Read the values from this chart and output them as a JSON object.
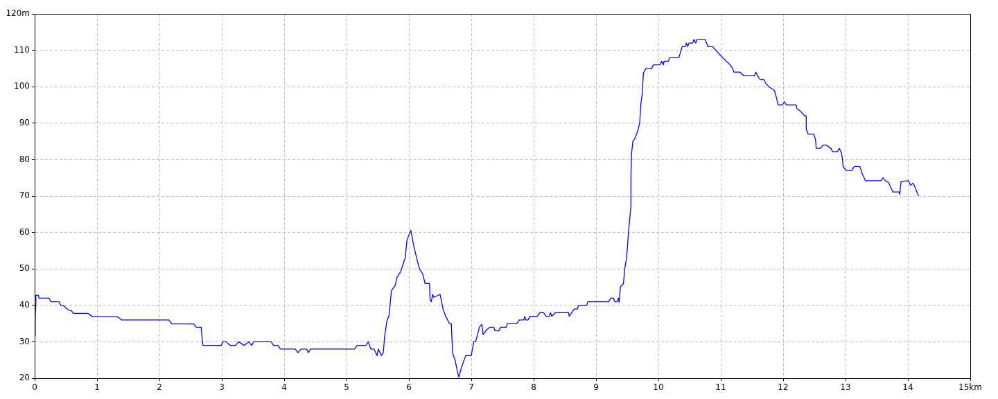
{
  "chart_data": {
    "type": "line",
    "xlim": [
      0,
      15
    ],
    "ylim": [
      20,
      120
    ],
    "xticks": [
      0,
      1,
      2,
      3,
      4,
      5,
      6,
      7,
      8,
      9,
      10,
      11,
      12,
      13,
      14,
      {
        "value": 15,
        "label": "15km"
      }
    ],
    "yticks": [
      20,
      30,
      40,
      50,
      60,
      70,
      80,
      90,
      100,
      110,
      {
        "value": 120,
        "label": "120m"
      }
    ],
    "grid": true,
    "marker": "none",
    "line_style": "solid",
    "legend": false,
    "series": [
      {
        "color": "#0000ff",
        "x": [
          0,
          0.01,
          0.02,
          0.02,
          0.06,
          0.07,
          0.23,
          0.26,
          0.39,
          0.42,
          0.46,
          0.53,
          0.59,
          0.62,
          0.85,
          0.93,
          1.33,
          1.39,
          2.15,
          2.2,
          2.55,
          2.59,
          2.67,
          2.69,
          2.7,
          2.99,
          3.02,
          3.07,
          3.14,
          3.22,
          3.27,
          3.36,
          3.43,
          3.48,
          3.51,
          3.79,
          3.83,
          3.9,
          3.94,
          4.18,
          4.22,
          4.27,
          4.36,
          4.39,
          4.42,
          5.09,
          5.13,
          5.17,
          5.31,
          5.35,
          5.39,
          5.44,
          5.49,
          5.51,
          5.56,
          5.59,
          5.61,
          5.65,
          5.68,
          5.7,
          5.72,
          5.78,
          5.81,
          5.87,
          5.91,
          5.94,
          5.97,
          6.03,
          6.07,
          6.13,
          6.17,
          6.22,
          6.26,
          6.33,
          6.34,
          6.36,
          6.38,
          6.4,
          6.5,
          6.55,
          6.59,
          6.65,
          6.68,
          6.7,
          6.74,
          6.77,
          6.8,
          6.84,
          6.91,
          7.0,
          7.04,
          7.07,
          7.13,
          7.17,
          7.19,
          7.24,
          7.3,
          7.36,
          7.38,
          7.44,
          7.47,
          7.56,
          7.58,
          7.73,
          7.77,
          7.84,
          7.86,
          7.87,
          7.91,
          7.94,
          8.06,
          8.1,
          8.16,
          8.2,
          8.25,
          8.27,
          8.29,
          8.35,
          8.56,
          8.57,
          8.61,
          8.65,
          8.7,
          8.72,
          8.85,
          8.87,
          9.2,
          9.24,
          9.28,
          9.3,
          9.34,
          9.36,
          9.37,
          9.39,
          9.44,
          9.46,
          9.49,
          9.52,
          9.55,
          9.56,
          9.56,
          9.57,
          9.59,
          9.63,
          9.67,
          9.7,
          9.72,
          9.74,
          9.76,
          9.8,
          9.89,
          9.92,
          10.03,
          10.05,
          10.08,
          10.09,
          10.16,
          10.18,
          10.33,
          10.38,
          10.43,
          10.45,
          10.47,
          10.49,
          10.55,
          10.57,
          10.6,
          10.62,
          10.75,
          10.77,
          10.8,
          10.87,
          11.0,
          11.15,
          11.19,
          11.21,
          11.31,
          11.37,
          11.54,
          11.56,
          11.59,
          11.63,
          11.69,
          11.72,
          11.77,
          11.86,
          11.9,
          11.92,
          11.99,
          12.02,
          12.05,
          12.21,
          12.22,
          12.27,
          12.34,
          12.37,
          12.37,
          12.4,
          12.49,
          12.52,
          12.53,
          12.6,
          12.64,
          12.69,
          12.77,
          12.79,
          12.87,
          12.9,
          12.93,
          12.95,
          12.96,
          13.01,
          13.1,
          13.14,
          13.23,
          13.26,
          13.32,
          13.57,
          13.6,
          13.64,
          13.69,
          13.76,
          13.86,
          13.87,
          13.89,
          14.01,
          14.04,
          14.08,
          14.1,
          14.13,
          14.17
        ],
        "values": [
          31.6,
          36.6,
          41,
          42.8,
          42.8,
          42,
          42,
          41,
          41,
          40,
          40,
          38.8,
          38.5,
          37.8,
          37.8,
          36.9,
          36.9,
          36,
          36,
          34.9,
          34.9,
          34,
          34,
          30,
          29,
          29,
          30,
          30,
          29,
          29,
          30,
          29,
          30,
          29,
          30,
          30,
          29,
          29,
          28,
          28,
          27,
          28,
          28,
          27,
          28,
          28,
          28,
          29,
          29,
          30,
          28,
          28,
          26.2,
          28,
          26.2,
          27,
          31.4,
          36,
          37,
          40.5,
          44,
          45.5,
          47.7,
          49.3,
          51.5,
          53,
          58,
          60.6,
          57,
          52.5,
          50,
          48.7,
          46,
          46,
          41.5,
          41,
          43,
          42.2,
          43,
          38.8,
          37,
          35,
          35,
          27,
          25,
          22.5,
          20.3,
          22.8,
          26.2,
          26.2,
          30,
          30,
          34,
          34.8,
          32,
          33.2,
          34,
          34,
          33,
          33,
          34,
          34,
          35,
          35,
          36,
          36,
          37,
          36,
          36,
          37,
          37,
          38,
          38,
          37,
          37,
          38,
          37,
          38,
          38,
          37,
          38,
          39,
          39,
          40,
          40,
          41,
          41,
          42,
          42,
          41,
          41,
          42,
          40.8,
          45,
          46,
          50,
          53,
          60,
          65.5,
          67.5,
          76,
          81.7,
          85,
          86,
          88,
          90,
          95.5,
          98,
          103.8,
          105,
          105,
          106,
          106,
          107,
          106,
          107,
          107,
          108,
          108,
          111,
          111,
          112,
          111,
          112,
          112,
          113,
          112,
          113,
          113,
          112,
          111,
          111,
          108.5,
          106,
          105,
          104,
          104,
          103,
          103,
          104,
          103,
          102,
          102,
          101,
          100,
          99,
          96.5,
          95,
          95,
          95.9,
          95,
          95,
          94,
          93.4,
          92.1,
          92,
          88.4,
          87,
          87,
          85.5,
          83.1,
          83.1,
          84,
          84,
          83,
          82.2,
          82.2,
          83.1,
          82,
          80.4,
          78.1,
          77,
          77,
          78.1,
          78.1,
          76.4,
          74.2,
          74.2,
          75,
          74.2,
          73.7,
          71.1,
          71.1,
          70.5,
          74,
          74.2,
          73,
          73.5,
          73,
          71.7,
          70
        ]
      }
    ]
  }
}
